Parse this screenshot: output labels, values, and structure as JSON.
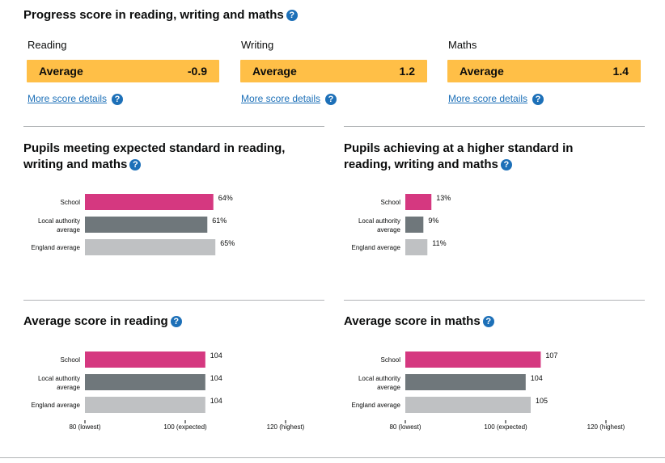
{
  "progress": {
    "title": "Progress score in reading, writing and maths",
    "subjects": [
      {
        "label": "Reading",
        "band": "Average",
        "score": "-0.9",
        "link": "More score details"
      },
      {
        "label": "Writing",
        "band": "Average",
        "score": "1.2",
        "link": "More score details"
      },
      {
        "label": "Maths",
        "band": "Average",
        "score": "1.4",
        "link": "More score details"
      }
    ]
  },
  "help_glyph": "?",
  "colors": {
    "school": "#d53880",
    "local": "#6f777b",
    "england": "#bfc1c3",
    "accent": "#ffbf47",
    "link": "#1d70b8"
  },
  "chart_data": [
    {
      "type": "bar",
      "orientation": "horizontal",
      "title": "Pupils meeting expected standard in reading, writing and maths",
      "categories": [
        "School",
        "Local authority average",
        "England average"
      ],
      "values": [
        64,
        61,
        65
      ],
      "value_labels": [
        "64%",
        "61%",
        "65%"
      ],
      "xlim": [
        0,
        100
      ]
    },
    {
      "type": "bar",
      "orientation": "horizontal",
      "title": "Pupils achieving at a higher standard in reading, writing and maths",
      "categories": [
        "School",
        "Local authority average",
        "England average"
      ],
      "values": [
        13,
        9,
        11
      ],
      "value_labels": [
        "13%",
        "9%",
        "11%"
      ],
      "xlim": [
        0,
        100
      ]
    },
    {
      "type": "bar",
      "orientation": "horizontal",
      "title": "Average score in reading",
      "categories": [
        "School",
        "Local authority average",
        "England average"
      ],
      "values": [
        104,
        104,
        104
      ],
      "value_labels": [
        "104",
        "104",
        "104"
      ],
      "xlim": [
        80,
        120
      ],
      "ticks": [
        "80 (lowest)",
        "100 (expected)",
        "120 (highest)"
      ]
    },
    {
      "type": "bar",
      "orientation": "horizontal",
      "title": "Average score in maths",
      "categories": [
        "School",
        "Local authority average",
        "England average"
      ],
      "values": [
        107,
        104,
        105
      ],
      "value_labels": [
        "107",
        "104",
        "105"
      ],
      "xlim": [
        80,
        120
      ],
      "ticks": [
        "80 (lowest)",
        "100 (expected)",
        "120 (highest)"
      ]
    }
  ]
}
